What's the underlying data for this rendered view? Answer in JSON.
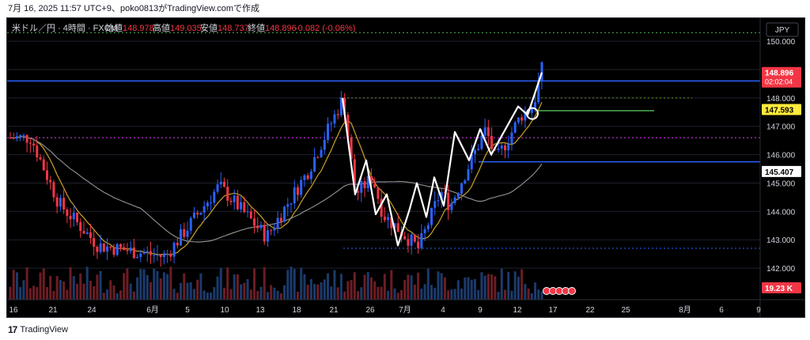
{
  "header": {
    "capture_line": "7月 16, 2025 11:57 UTC+9、poko0813がTradingView.comで作成"
  },
  "legend": {
    "symbol": "米ドル／円 · 4時間 · FXCM",
    "open_label": "始値",
    "open": "148.978",
    "high_label": "高値",
    "high": "149.035",
    "low_label": "安値",
    "low": "148.737",
    "close_label": "終値",
    "close": "148.896",
    "change": "-0.082 (-0.06%)"
  },
  "currency_button": "JPY",
  "footer": {
    "brand": "TradingView"
  },
  "colors": {
    "background": "#000000",
    "bull": "#2962ff",
    "bear": "#f23645",
    "ma_fast": "#c9a227",
    "ma_slow": "#8a8a8a",
    "zigzag": "#ffffff",
    "hline_blue": "#2962ff",
    "hline_green": "#4caf50",
    "dotted_pink": "#e040fb",
    "dotted_green": "#6b8e23",
    "price_tag": "#f23645",
    "tag_yellow": "#ffeb3b"
  },
  "chart_data": {
    "type": "candlestick",
    "title": "米ドル／円 · 4時間 · FXCM",
    "xlabel": "",
    "ylabel": "",
    "ylim": [
      141.0,
      150.7
    ],
    "y_ticks": [
      "150.000",
      "149.000",
      "148.000",
      "147.000",
      "146.000",
      "145.000",
      "144.000",
      "143.000",
      "142.000"
    ],
    "x_ticks": [
      "16",
      "21",
      "24",
      "6月",
      "5",
      "10",
      "13",
      "18",
      "21",
      "26",
      "7月",
      "4",
      "9",
      "12",
      "17",
      "22",
      "25",
      "8月",
      "6",
      "9"
    ],
    "price_tags": {
      "last": "148.896",
      "countdown": "02:02:04",
      "yellow": "147.593",
      "level": "145.407",
      "volume": "19.23 K"
    },
    "key_points": [
      {
        "date": "5月14",
        "price": 146.6
      },
      {
        "date": "5月21",
        "price": 144.3
      },
      {
        "date": "5月26",
        "price": 142.8
      },
      {
        "date": "6月5",
        "price": 142.4
      },
      {
        "date": "6月10",
        "price": 144.9
      },
      {
        "date": "6月13",
        "price": 143.1
      },
      {
        "date": "6月18",
        "price": 145.4
      },
      {
        "date": "6月23",
        "price": 148.0
      },
      {
        "date": "6月25",
        "price": 144.6
      },
      {
        "date": "6月26",
        "price": 145.2
      },
      {
        "date": "6月27",
        "price": 143.9
      },
      {
        "date": "7月1",
        "price": 142.7
      },
      {
        "date": "7月3",
        "price": 144.7
      },
      {
        "date": "7月4",
        "price": 144.2
      },
      {
        "date": "7月7",
        "price": 146.0
      },
      {
        "date": "7月8",
        "price": 146.9
      },
      {
        "date": "7月9",
        "price": 145.8
      },
      {
        "date": "7月11",
        "price": 147.4
      },
      {
        "date": "7月14",
        "price": 147.7
      },
      {
        "date": "7月15",
        "price": 149.0
      }
    ],
    "zigzag": [
      {
        "date": "6月23",
        "price": 148.0
      },
      {
        "date": "6月25",
        "price": 144.6
      },
      {
        "date": "6月26",
        "price": 145.8
      },
      {
        "date": "6月27",
        "price": 143.9
      },
      {
        "date": "6月30",
        "price": 144.6
      },
      {
        "date": "7月1",
        "price": 142.8
      },
      {
        "date": "7月2",
        "price": 144.0
      },
      {
        "date": "7月3",
        "price": 145.0
      },
      {
        "date": "7月3b",
        "price": 143.8
      },
      {
        "date": "7月4",
        "price": 145.2
      },
      {
        "date": "7月7",
        "price": 144.2
      },
      {
        "date": "7月8",
        "price": 146.8
      },
      {
        "date": "7月9",
        "price": 145.8
      },
      {
        "date": "7月10",
        "price": 146.9
      },
      {
        "date": "7月11",
        "price": 146.0
      },
      {
        "date": "7月14",
        "price": 147.7
      },
      {
        "date": "7月14b",
        "price": 147.4
      },
      {
        "date": "7月15",
        "price": 148.9
      }
    ],
    "horizontal_levels": [
      {
        "price": 148.6,
        "style": "solid",
        "color": "#2962ff"
      },
      {
        "price": 147.55,
        "style": "solid",
        "color": "#4caf50"
      },
      {
        "price": 145.75,
        "style": "solid",
        "color": "#2962ff"
      },
      {
        "price": 148.0,
        "style": "dotted",
        "color": "#6b8e23"
      },
      {
        "price": 146.6,
        "style": "dotted",
        "color": "#e040fb"
      },
      {
        "price": 142.7,
        "style": "dotted",
        "color": "#2962ff"
      },
      {
        "price": 150.3,
        "style": "dotted",
        "color": "#4caf50"
      }
    ],
    "grid": true,
    "legend_position": "top-left"
  }
}
